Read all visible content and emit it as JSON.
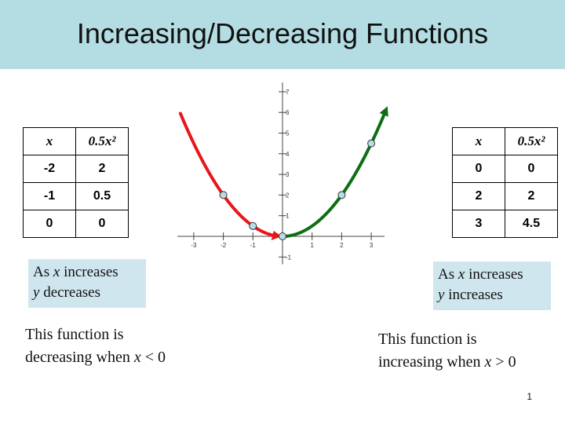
{
  "title": "Increasing/Decreasing Functions",
  "left_table": {
    "header": [
      "x",
      "0.5x²"
    ],
    "rows": [
      [
        "-2",
        "2"
      ],
      [
        "-1",
        "0.5"
      ],
      [
        "0",
        "0"
      ]
    ]
  },
  "right_table": {
    "header": [
      "x",
      "0.5x²"
    ],
    "rows": [
      [
        "0",
        "0"
      ],
      [
        "2",
        "2"
      ],
      [
        "3",
        "4.5"
      ]
    ]
  },
  "left_box": {
    "line1_pre": "As ",
    "var1": "x",
    "line1_post": " increases",
    "var2": "y",
    "line2_post": " decreases"
  },
  "right_box": {
    "line1_pre": "As ",
    "var1": "x",
    "line1_post": " increases",
    "var2": "y",
    "line2_post": " increases"
  },
  "left_note": {
    "line1": "This function is",
    "line2_pre": "decreasing when ",
    "var": "x",
    "line2_post": " < 0"
  },
  "right_note": {
    "line1": "This function is",
    "line2_pre": "increasing when ",
    "var": "x",
    "line2_post": " > 0"
  },
  "page_number": "1",
  "graph": {
    "x_ticks": [
      "-3",
      "-2",
      "-1",
      "1",
      "2",
      "3"
    ],
    "y_ticks": [
      "7",
      "6",
      "5",
      "4",
      "3",
      "2",
      "1",
      "-1"
    ],
    "function": "0.5x^2",
    "decreasing_points": [
      [
        -2,
        2
      ],
      [
        -1,
        0.5
      ],
      [
        0,
        0
      ]
    ],
    "increasing_points": [
      [
        2,
        2
      ],
      [
        3,
        4.5
      ]
    ],
    "colors": {
      "decreasing": "#e8161b",
      "increasing": "#0d6e14",
      "axis": "#444444",
      "point_fill": "#b8dde6"
    }
  }
}
